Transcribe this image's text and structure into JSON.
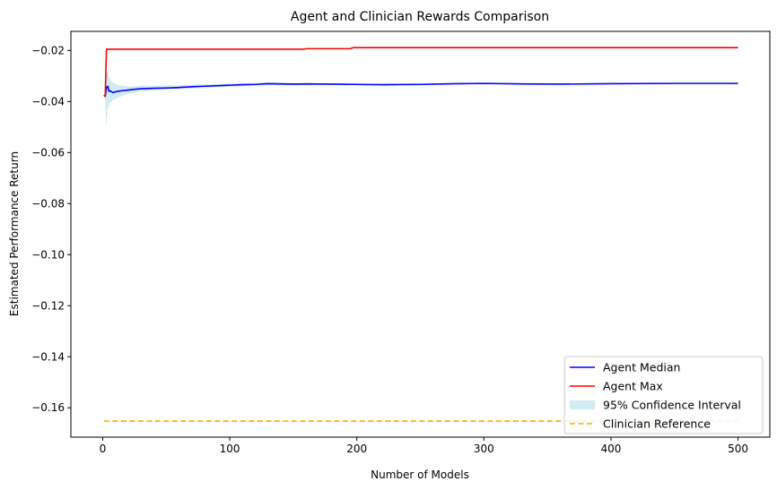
{
  "chart_data": {
    "type": "line",
    "title": "Agent and Clinician Rewards Comparison",
    "xlabel": "Number of Models",
    "ylabel": "Estimated Performance Return",
    "xlim": [
      -25,
      525
    ],
    "ylim": [
      -0.1715,
      -0.0125
    ],
    "xticks": [
      0,
      100,
      200,
      300,
      400,
      500
    ],
    "yticks": [
      -0.02,
      -0.04,
      -0.06,
      -0.08,
      -0.1,
      -0.12,
      -0.14,
      -0.16
    ],
    "xtick_labels": [
      "0",
      "100",
      "200",
      "300",
      "400",
      "500"
    ],
    "ytick_labels": [
      "−0.02",
      "−0.04",
      "−0.06",
      "−0.08",
      "−0.10",
      "−0.12",
      "−0.14",
      "−0.16"
    ],
    "grid": false,
    "legend_position": "lower-right",
    "series": [
      {
        "name": "Agent Median",
        "color": "#0000ff",
        "style": "solid",
        "x": [
          1,
          2,
          3,
          4,
          5,
          6,
          8,
          10,
          12,
          15,
          20,
          25,
          30,
          40,
          50,
          60,
          70,
          80,
          90,
          100,
          110,
          120,
          130,
          140,
          150,
          160,
          180,
          200,
          220,
          250,
          280,
          300,
          330,
          360,
          400,
          450,
          500
        ],
        "y": [
          -0.0375,
          -0.038,
          -0.0345,
          -0.034,
          -0.036,
          -0.0358,
          -0.0365,
          -0.0362,
          -0.036,
          -0.0358,
          -0.0355,
          -0.0352,
          -0.035,
          -0.0348,
          -0.0347,
          -0.0345,
          -0.0342,
          -0.034,
          -0.0338,
          -0.0336,
          -0.0334,
          -0.0333,
          -0.033,
          -0.0331,
          -0.0332,
          -0.0331,
          -0.0332,
          -0.0333,
          -0.0334,
          -0.0333,
          -0.033,
          -0.0329,
          -0.0331,
          -0.0332,
          -0.033,
          -0.0329,
          -0.0329
        ]
      },
      {
        "name": "Agent Max",
        "color": "#ff0000",
        "style": "solid",
        "x": [
          1,
          2,
          3,
          4,
          158,
          160,
          195,
          197,
          500
        ],
        "y": [
          -0.0375,
          -0.038,
          -0.0195,
          -0.0195,
          -0.0195,
          -0.0193,
          -0.0193,
          -0.0189,
          -0.0189
        ]
      },
      {
        "name": "Clinician Reference",
        "color": "#ffa500",
        "style": "dashed",
        "x": [
          1,
          500
        ],
        "y": [
          -0.1652,
          -0.1652
        ]
      }
    ],
    "band": {
      "name": "95% Confidence Interval",
      "color": "#add8e6",
      "x": [
        2,
        3,
        4,
        5,
        6,
        8,
        10,
        12,
        15,
        20,
        25,
        30,
        40,
        50,
        60,
        70,
        80,
        90,
        100,
        110,
        120,
        130,
        140,
        150,
        160,
        180,
        200,
        220,
        250,
        280,
        300,
        330,
        360,
        400,
        450,
        500
      ],
      "upper": [
        -0.038,
        -0.027,
        -0.029,
        -0.0305,
        -0.0315,
        -0.0325,
        -0.033,
        -0.0335,
        -0.0338,
        -0.034,
        -0.034,
        -0.0338,
        -0.0338,
        -0.0337,
        -0.0336,
        -0.0334,
        -0.0333,
        -0.0332,
        -0.033,
        -0.0329,
        -0.0328,
        -0.0325,
        -0.0326,
        -0.0328,
        -0.0328,
        -0.0329,
        -0.033,
        -0.0331,
        -0.033,
        -0.0327,
        -0.0327,
        -0.0329,
        -0.033,
        -0.0328,
        -0.0328,
        -0.0328
      ],
      "lower": [
        -0.039,
        -0.05,
        -0.043,
        -0.0415,
        -0.0405,
        -0.0395,
        -0.039,
        -0.0385,
        -0.0378,
        -0.037,
        -0.0364,
        -0.036,
        -0.0356,
        -0.0354,
        -0.0352,
        -0.0349,
        -0.0347,
        -0.0345,
        -0.0342,
        -0.034,
        -0.0338,
        -0.0335,
        -0.0336,
        -0.0337,
        -0.0335,
        -0.0335,
        -0.0336,
        -0.0337,
        -0.0336,
        -0.0333,
        -0.0332,
        -0.0333,
        -0.0334,
        -0.0332,
        -0.0331,
        -0.033
      ]
    },
    "legend": [
      {
        "label": "Agent Median",
        "kind": "line",
        "color": "#0000ff"
      },
      {
        "label": "Agent Max",
        "kind": "line",
        "color": "#ff0000"
      },
      {
        "label": "95% Confidence Interval",
        "kind": "patch",
        "color": "#add8e6"
      },
      {
        "label": "Clinician Reference",
        "kind": "dashed",
        "color": "#ffa500"
      }
    ]
  }
}
